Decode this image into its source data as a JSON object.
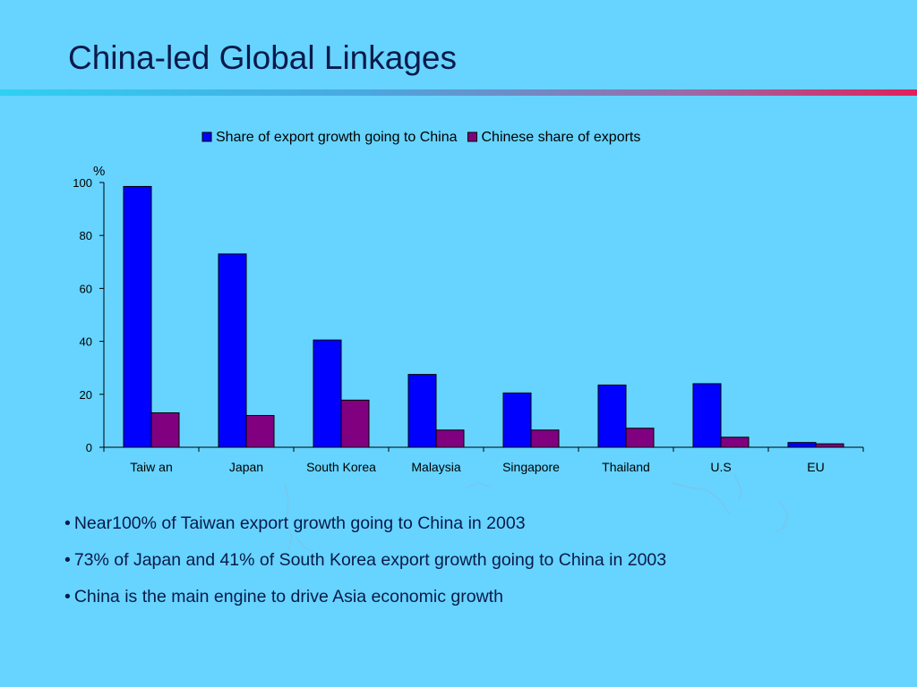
{
  "slide": {
    "title": "China-led Global Linkages",
    "bullet_marker": "•",
    "bullets": [
      "Near100% of Taiwan export growth going to China in 2003",
      "73% of Japan and 41% of South Korea export growth going to China in 2003",
      "China is the main engine to drive Asia economic growth"
    ]
  },
  "colors": {
    "background": "#66d4ff",
    "series_1": "#0000ff",
    "series_2": "#800080",
    "axis": "#000000"
  },
  "chart_data": {
    "type": "bar",
    "title": "",
    "ylabel": "%",
    "xlabel": "",
    "ylim": [
      0,
      100
    ],
    "yticks": [
      0,
      20,
      40,
      60,
      80,
      100
    ],
    "grid": false,
    "legend_position": "top",
    "categories": [
      "Taiw an",
      "Japan",
      "South Korea",
      "Malaysia",
      "Singapore",
      "Thailand",
      "U.S",
      "EU"
    ],
    "series": [
      {
        "name": "Share of export growth going to China",
        "color": "#0000ff",
        "values": [
          98.5,
          73,
          40.5,
          27.5,
          20.5,
          23.5,
          24,
          1.8
        ]
      },
      {
        "name": "Chinese share of exports",
        "color": "#800080",
        "values": [
          13,
          12,
          17.8,
          6.5,
          6.5,
          7.2,
          3.8,
          1.3
        ]
      }
    ]
  }
}
